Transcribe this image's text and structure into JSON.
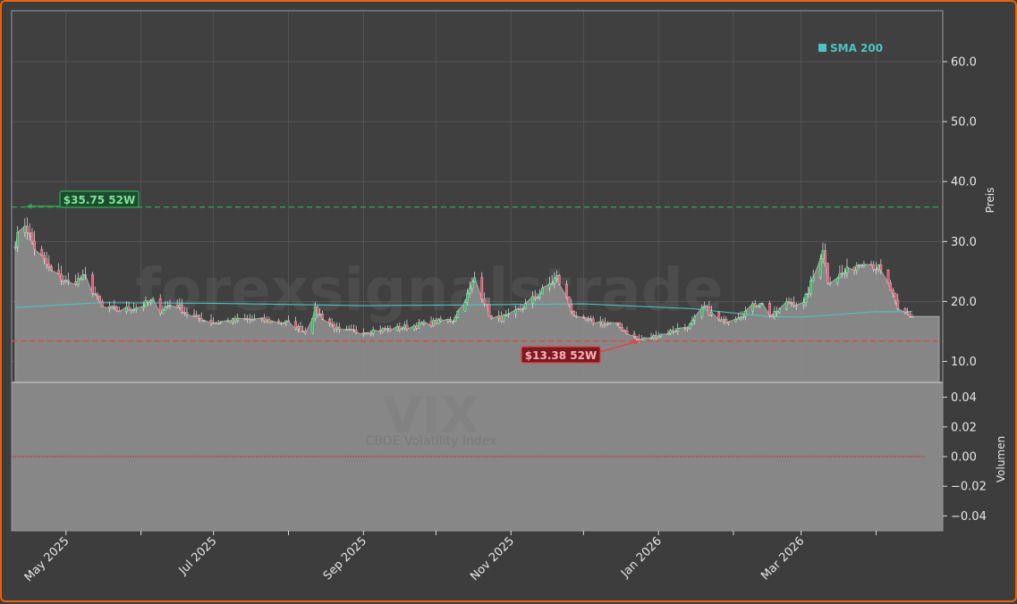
{
  "chart_data": {
    "type": "candlestick",
    "watermark": "forexsignalstrade",
    "symbol": "VIX",
    "symbol_name": "CBOE Volatility Index",
    "ylabel_price": "Preis",
    "ylabel_volume": "Volumen",
    "price_ylim": [
      6.5,
      68.5
    ],
    "price_ticks": [
      "10.0",
      "20.0",
      "30.0",
      "40.0",
      "50.0",
      "60.0"
    ],
    "volume_ylim": [
      -0.05,
      0.05
    ],
    "volume_ticks": [
      "0.04",
      "0.02",
      "0.00",
      "−0.02",
      "−0.04"
    ],
    "x_range": [
      "2025-04-10",
      "2026-04-16"
    ],
    "x_ticks": [
      {
        "date": "2025-05-01",
        "label": "May 2025"
      },
      {
        "date": "2025-06-01",
        "label": ""
      },
      {
        "date": "2025-07-01",
        "label": "Jul 2025"
      },
      {
        "date": "2025-08-01",
        "label": ""
      },
      {
        "date": "2025-09-01",
        "label": "Sep 2025"
      },
      {
        "date": "2025-10-01",
        "label": ""
      },
      {
        "date": "2025-11-01",
        "label": "Nov 2025"
      },
      {
        "date": "2025-12-01",
        "label": ""
      },
      {
        "date": "2026-01-01",
        "label": "Jan 2026"
      },
      {
        "date": "2026-02-01",
        "label": ""
      },
      {
        "date": "2026-03-01",
        "label": "Mar 2026"
      },
      {
        "date": "2026-04-01",
        "label": ""
      }
    ],
    "grid": true,
    "legend": {
      "position": "top-right",
      "entries": [
        {
          "label": "SMA 200",
          "color": "#4fc3c3"
        }
      ]
    },
    "high_52w": {
      "value": 35.75,
      "label": "$35.75 52W",
      "date": "2025-04-14"
    },
    "low_52w": {
      "value": 13.38,
      "label": "$13.38 52W",
      "date": "2025-12-24"
    },
    "last_close": 17.5,
    "close_points": [
      [
        "2025-04-10",
        30
      ],
      [
        "2025-04-14",
        33
      ],
      [
        "2025-04-18",
        29
      ],
      [
        "2025-04-25",
        25
      ],
      [
        "2025-05-02",
        23
      ],
      [
        "2025-05-09",
        24
      ],
      [
        "2025-05-16",
        19
      ],
      [
        "2025-05-23",
        18.5
      ],
      [
        "2025-05-30",
        19
      ],
      [
        "2025-06-06",
        20
      ],
      [
        "2025-06-13",
        19.5
      ],
      [
        "2025-06-20",
        18
      ],
      [
        "2025-06-27",
        17
      ],
      [
        "2025-06-07",
        18
      ],
      [
        "2025-06-14",
        20
      ],
      [
        "2025-06-21",
        17.5
      ],
      [
        "2025-07-01",
        16.5
      ],
      [
        "2025-07-15",
        17
      ],
      [
        "2025-07-31",
        16.5
      ],
      [
        "2025-08-08",
        15
      ],
      [
        "2025-08-12",
        18.5
      ],
      [
        "2025-08-22",
        15
      ],
      [
        "2025-09-01",
        15
      ],
      [
        "2025-09-15",
        15.5
      ],
      [
        "2025-09-30",
        16.5
      ],
      [
        "2025-10-08",
        17
      ],
      [
        "2025-10-14",
        21
      ],
      [
        "2025-10-17",
        24
      ],
      [
        "2025-10-24",
        17
      ],
      [
        "2025-11-01",
        17.5
      ],
      [
        "2025-11-12",
        21
      ],
      [
        "2025-11-20",
        24
      ],
      [
        "2025-11-28",
        17
      ],
      [
        "2025-12-08",
        16.5
      ],
      [
        "2025-12-15",
        16
      ],
      [
        "2025-12-24",
        13.5
      ],
      [
        "2026-01-02",
        14.5
      ],
      [
        "2026-01-14",
        16
      ],
      [
        "2026-01-20",
        19
      ],
      [
        "2026-01-27",
        16.5
      ],
      [
        "2026-02-05",
        18
      ],
      [
        "2026-02-12",
        20
      ],
      [
        "2026-02-17",
        17.5
      ],
      [
        "2026-02-24",
        20
      ],
      [
        "2026-03-02",
        19.5
      ],
      [
        "2026-03-06",
        24
      ],
      [
        "2026-03-10",
        29
      ],
      [
        "2026-03-12",
        23.5
      ],
      [
        "2026-03-20",
        25
      ],
      [
        "2026-03-27",
        27
      ],
      [
        "2026-04-02",
        25.5
      ],
      [
        "2026-04-07",
        22
      ],
      [
        "2026-04-10",
        18.5
      ],
      [
        "2026-04-16",
        17.5
      ]
    ],
    "sma200_points": [
      [
        "2025-04-10",
        19.0
      ],
      [
        "2025-05-15",
        19.8
      ],
      [
        "2025-07-01",
        19.7
      ],
      [
        "2025-09-01",
        19.3
      ],
      [
        "2025-11-01",
        19.5
      ],
      [
        "2025-12-01",
        19.6
      ],
      [
        "2026-01-15",
        18.8
      ],
      [
        "2026-02-15",
        17.5
      ],
      [
        "2026-03-01",
        17.4
      ],
      [
        "2026-04-01",
        18.3
      ],
      [
        "2026-04-16",
        18.3
      ]
    ],
    "colors": {
      "up": "#2fbf5a",
      "down": "#e8556e",
      "sma": "#4fc3c3",
      "high_line": "#2eaa57",
      "low_line": "#e14444",
      "area": "#8c8c8c",
      "volume_line": "#d22a2a"
    }
  }
}
